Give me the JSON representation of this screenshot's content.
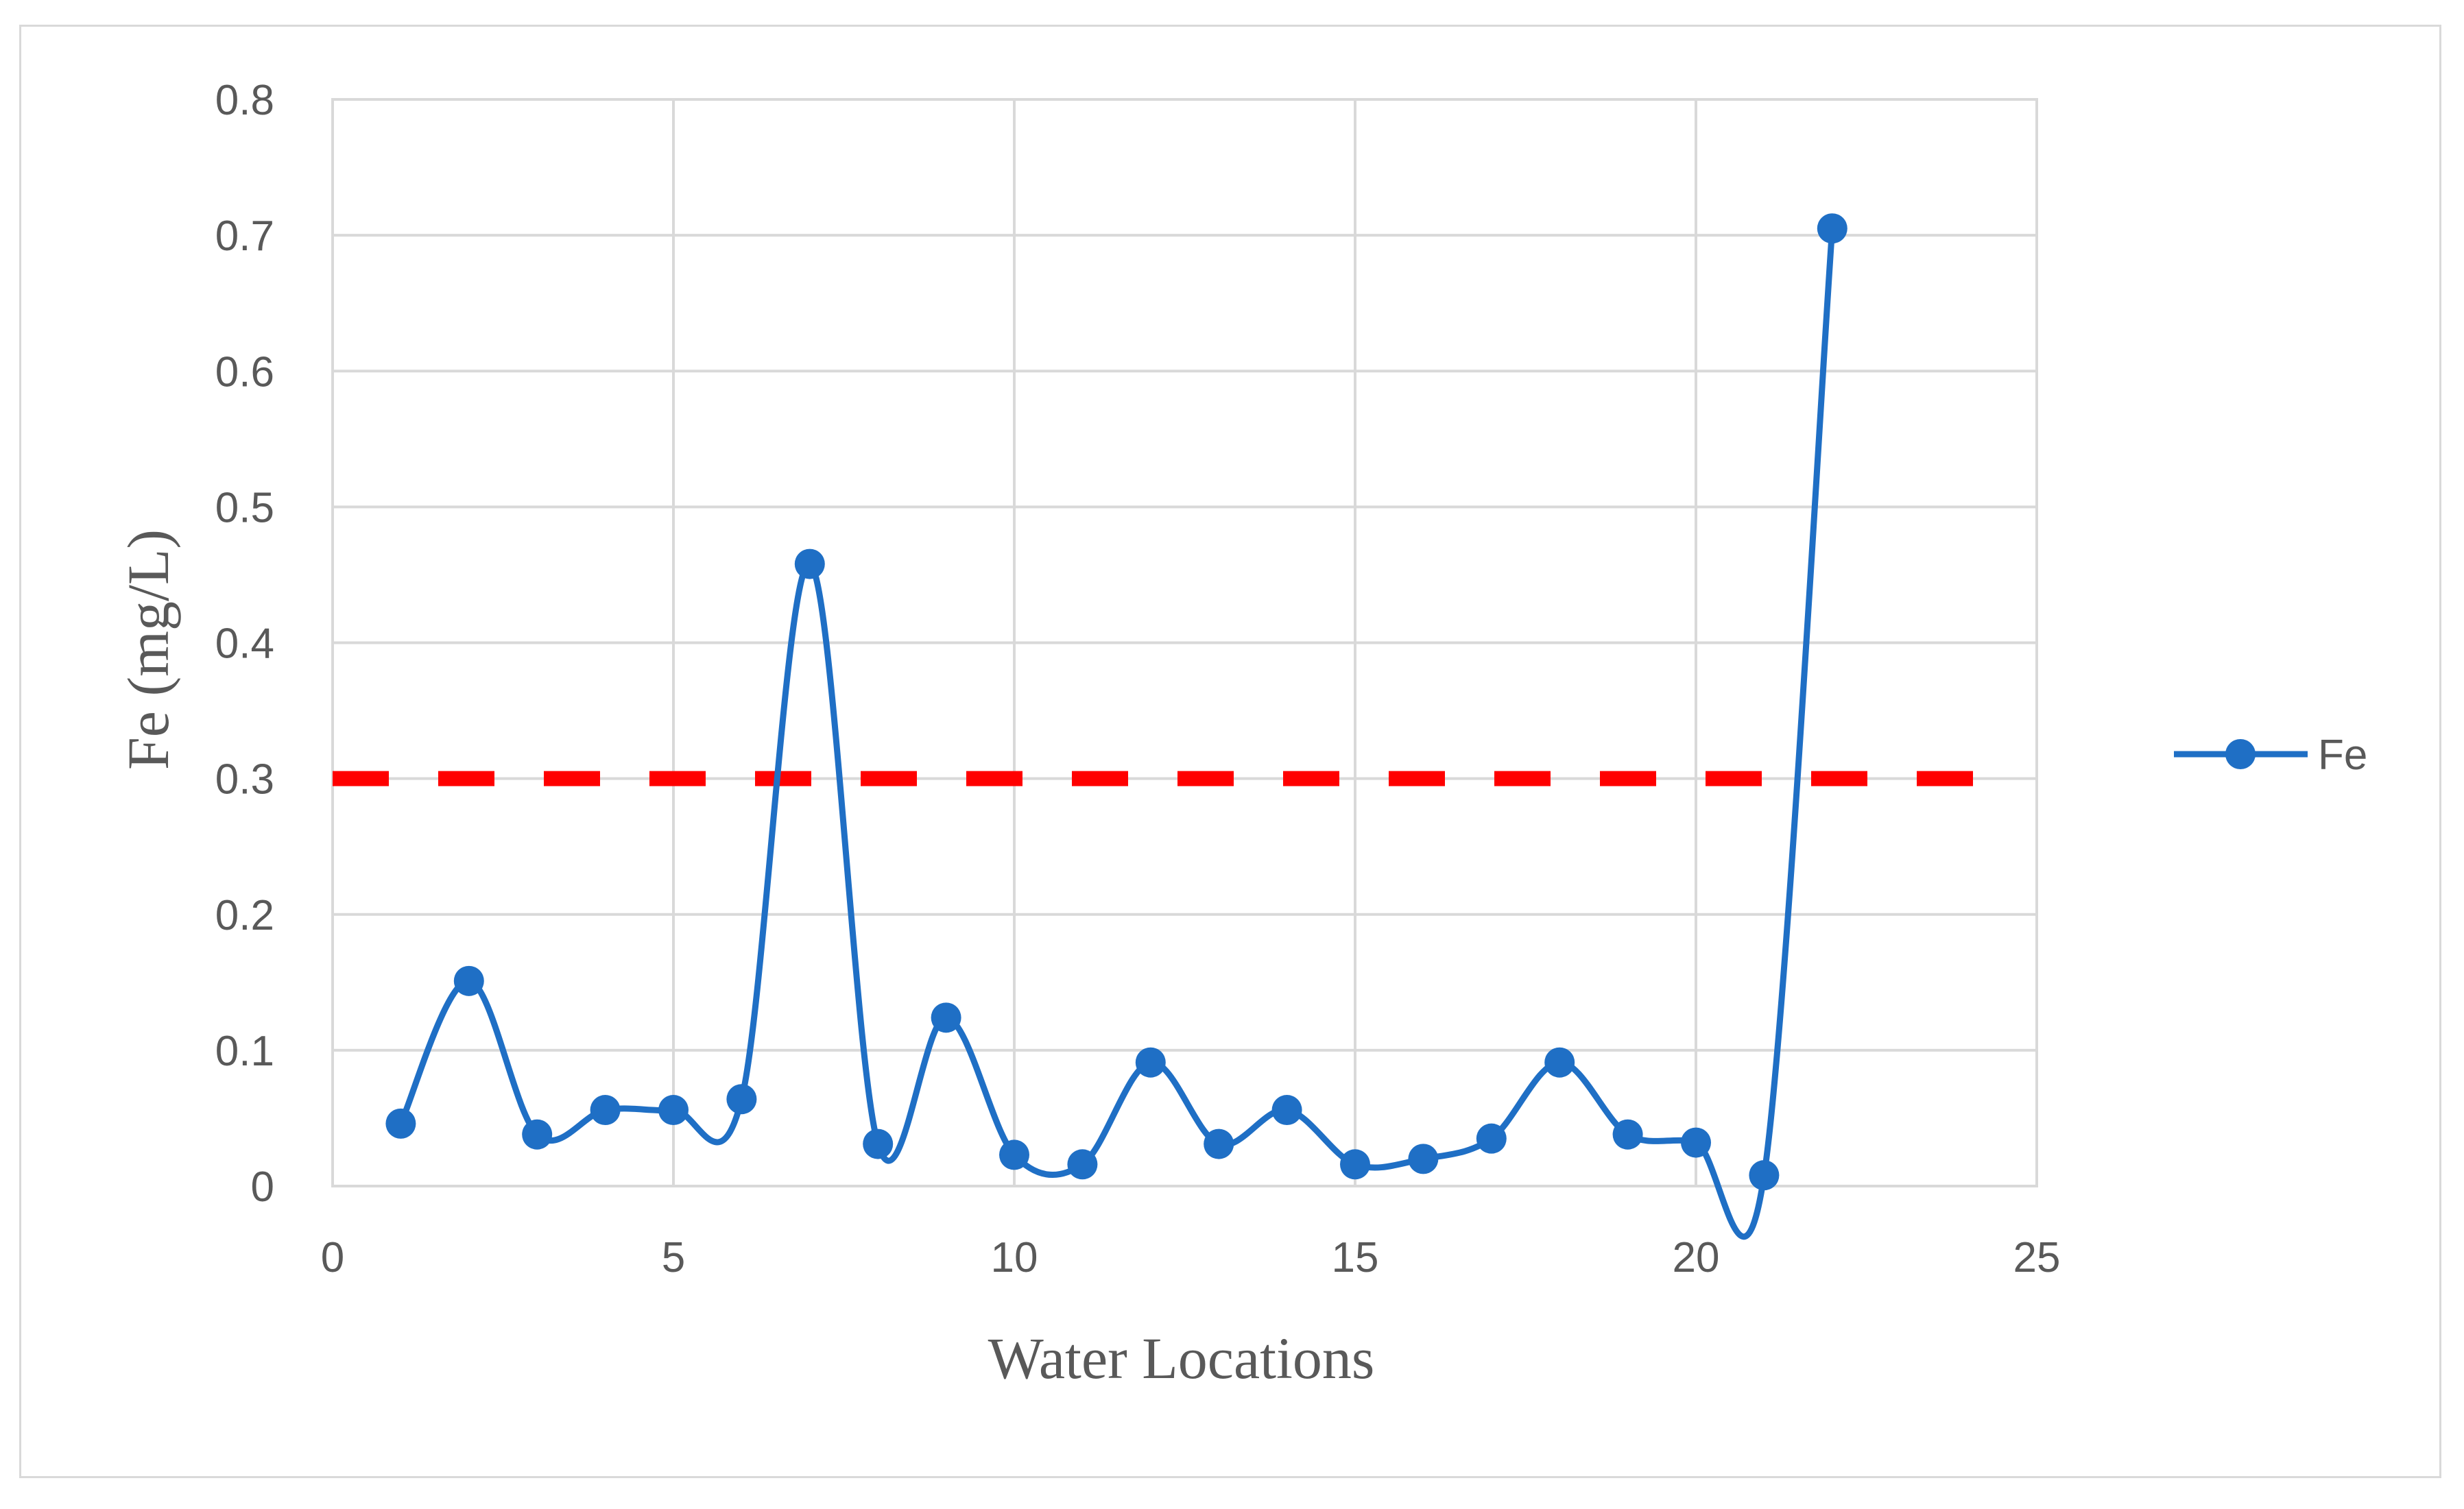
{
  "chart_data": {
    "type": "line",
    "xlabel": "Water Locations",
    "ylabel": "Fe (mg/L)",
    "xlim": [
      0,
      25
    ],
    "ylim": [
      0,
      0.8
    ],
    "x_ticks": [
      "0",
      "5",
      "10",
      "15",
      "20",
      "25"
    ],
    "y_ticks": [
      "0",
      "0.1",
      "0.2",
      "0.3",
      "0.4",
      "0.5",
      "0.6",
      "0.7",
      "0.8"
    ],
    "grid": true,
    "legend_position": "right",
    "smooth": true,
    "series": [
      {
        "name": "Fe",
        "color": "#1f6fc5",
        "marker": "circle",
        "x": [
          1,
          2,
          3,
          4,
          5,
          6,
          7,
          8,
          9,
          10,
          11,
          12,
          13,
          14,
          15,
          16,
          17,
          18,
          19,
          20,
          21,
          22
        ],
        "y": [
          0.046,
          0.151,
          0.038,
          0.056,
          0.056,
          0.064,
          0.458,
          0.031,
          0.124,
          0.023,
          0.016,
          0.091,
          0.031,
          0.056,
          0.016,
          0.02,
          0.035,
          0.091,
          0.038,
          0.032,
          0.008,
          0.705
        ]
      }
    ],
    "reference_line": {
      "y": 0.3,
      "color": "#ff0000",
      "style": "dashed"
    }
  }
}
